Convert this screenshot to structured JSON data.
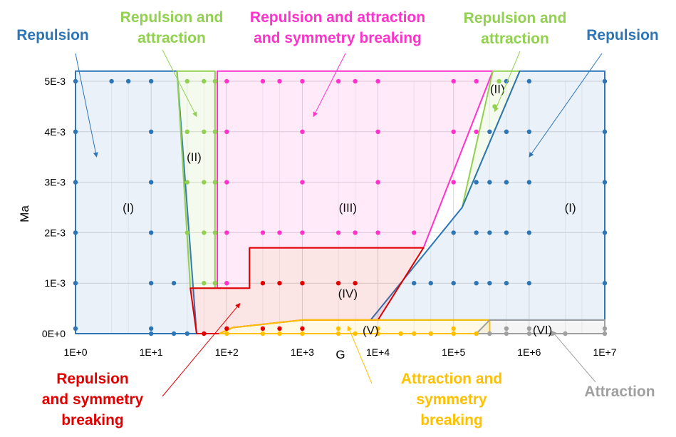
{
  "chart_data": {
    "type": "scatter",
    "title": "",
    "xlabel": "G",
    "ylabel": "Ma",
    "x_scale": "log",
    "xlim": [
      1,
      10000000
    ],
    "ylim": [
      0,
      0.005
    ],
    "grid": true,
    "x_ticks": [
      "1E+0",
      "1E+1",
      "1E+2",
      "1E+3",
      "1E+4",
      "1E+5",
      "1E+6",
      "1E+7"
    ],
    "y_ticks": [
      "0E+0",
      "1E-3",
      "2E-3",
      "3E-3",
      "4E-3",
      "5E-3"
    ],
    "colors": {
      "repulsion": "#2e75b6",
      "repulsion_attraction": "#92d050",
      "repulsion_attraction_symmetry": "#ff33cc",
      "repulsion_symmetry": "#e00000",
      "attraction_symmetry": "#ffc000",
      "attraction": "#a0a0a0"
    },
    "regions": [
      {
        "label": "(I)",
        "color": "#2e75b6",
        "polygon": [
          [
            1,
            0.0052
          ],
          [
            22,
            0.0052
          ],
          [
            40,
            0
          ],
          [
            1,
            0
          ]
        ]
      },
      {
        "label": "(II)",
        "color": "#92d050",
        "polygon": [
          [
            22,
            0.0052
          ],
          [
            70,
            0.0052
          ],
          [
            70,
            0.0009
          ],
          [
            33,
            0.0009
          ]
        ]
      },
      {
        "label": "(III)",
        "color": "#ff33cc",
        "polygon": [
          [
            75,
            0.0052
          ],
          [
            330000,
            0.0052
          ],
          [
            40000,
            0.0017
          ],
          [
            200,
            0.0017
          ],
          [
            200,
            0.0009
          ],
          [
            75,
            0.0009
          ]
        ]
      },
      {
        "label": "(II)",
        "color": "#92d050",
        "polygon": [
          [
            330000,
            0.0052
          ],
          [
            750000,
            0.0052
          ],
          [
            130000,
            0.0025
          ]
        ]
      },
      {
        "label": "(I)",
        "color": "#2e75b6",
        "polygon": [
          [
            750000,
            0.0052
          ],
          [
            10000000,
            0.0052
          ],
          [
            10000000,
            0.00027
          ],
          [
            8000,
            0.00027
          ],
          [
            130000,
            0.0025
          ]
        ]
      },
      {
        "label": "(IV)",
        "color": "#e00000",
        "polygon": [
          [
            33,
            0.0009
          ],
          [
            200,
            0.0009
          ],
          [
            200,
            0.0017
          ],
          [
            40000,
            0.0017
          ],
          [
            10000,
            0.00027
          ],
          [
            1000,
            0.00027
          ],
          [
            120,
            0.00012
          ],
          [
            80,
            0
          ],
          [
            40,
            0
          ]
        ]
      },
      {
        "label": "(V)",
        "color": "#ffc000",
        "polygon": [
          [
            80,
            0
          ],
          [
            300000,
            0
          ],
          [
            300000,
            0.00027
          ],
          [
            1000,
            0.00027
          ],
          [
            120,
            0.00012
          ]
        ]
      },
      {
        "label": "(VI)",
        "color": "#a0a0a0",
        "polygon": [
          [
            200000,
            0
          ],
          [
            10000000,
            0
          ],
          [
            10000000,
            0.00027
          ],
          [
            300000,
            0.00027
          ]
        ]
      }
    ],
    "series": [
      {
        "name": "Repulsion",
        "color": "#2e75b6",
        "points": [
          [
            1,
            0.005
          ],
          [
            3,
            0.005
          ],
          [
            5,
            0.005
          ],
          [
            10,
            0.005
          ],
          [
            1,
            0.004
          ],
          [
            10,
            0.004
          ],
          [
            1,
            0.003
          ],
          [
            10,
            0.003
          ],
          [
            1,
            0.002
          ],
          [
            10,
            0.002
          ],
          [
            1,
            0.001
          ],
          [
            10,
            0.001
          ],
          [
            20,
            0.001
          ],
          [
            1,
            0.0001
          ],
          [
            10,
            0.0001
          ],
          [
            10,
            0
          ],
          [
            20,
            0
          ],
          [
            30,
            0
          ],
          [
            500000,
            0.005
          ],
          [
            1000000,
            0.005
          ],
          [
            10000000,
            0.005
          ],
          [
            300000,
            0.004
          ],
          [
            500000,
            0.004
          ],
          [
            1000000,
            0.004
          ],
          [
            10000000,
            0.004
          ],
          [
            200000,
            0.003
          ],
          [
            300000,
            0.003
          ],
          [
            500000,
            0.003
          ],
          [
            1000000,
            0.003
          ],
          [
            10000000,
            0.003
          ],
          [
            100000,
            0.002
          ],
          [
            200000,
            0.002
          ],
          [
            300000,
            0.002
          ],
          [
            500000,
            0.002
          ],
          [
            1000000,
            0.002
          ],
          [
            10000000,
            0.002
          ],
          [
            30000,
            0.001
          ],
          [
            50000,
            0.001
          ],
          [
            100000,
            0.001
          ],
          [
            200000,
            0.001
          ],
          [
            300000,
            0.001
          ],
          [
            500000,
            0.001
          ],
          [
            1000000,
            0.001
          ],
          [
            10000000,
            0.001
          ]
        ]
      },
      {
        "name": "Repulsion and attraction",
        "color": "#92d050",
        "points": [
          [
            30,
            0.005
          ],
          [
            50,
            0.005
          ],
          [
            70,
            0.005
          ],
          [
            30,
            0.004
          ],
          [
            50,
            0.004
          ],
          [
            70,
            0.004
          ],
          [
            30,
            0.003
          ],
          [
            50,
            0.003
          ],
          [
            70,
            0.003
          ],
          [
            30,
            0.002
          ],
          [
            50,
            0.002
          ],
          [
            70,
            0.002
          ],
          [
            50,
            0.001
          ],
          [
            70,
            0.001
          ],
          [
            400000,
            0.005
          ],
          [
            350000,
            0.0045
          ]
        ]
      },
      {
        "name": "Repulsion and attraction and symmetry breaking",
        "color": "#ff33cc",
        "points": [
          [
            100,
            0.005
          ],
          [
            300,
            0.005
          ],
          [
            500,
            0.005
          ],
          [
            1000,
            0.005
          ],
          [
            3000,
            0.005
          ],
          [
            5000,
            0.005
          ],
          [
            10000,
            0.005
          ],
          [
            100000,
            0.005
          ],
          [
            200000,
            0.005
          ],
          [
            100,
            0.004
          ],
          [
            1000,
            0.004
          ],
          [
            10000,
            0.004
          ],
          [
            100000,
            0.004
          ],
          [
            200000,
            0.004
          ],
          [
            100,
            0.003
          ],
          [
            1000,
            0.003
          ],
          [
            10000,
            0.003
          ],
          [
            100000,
            0.003
          ],
          [
            100,
            0.002
          ],
          [
            300,
            0.002
          ],
          [
            500,
            0.002
          ],
          [
            1000,
            0.002
          ],
          [
            3000,
            0.002
          ],
          [
            5000,
            0.002
          ],
          [
            10000,
            0.002
          ],
          [
            30000,
            0.002
          ],
          [
            100,
            0.001
          ]
        ]
      },
      {
        "name": "Repulsion and symmetry breaking",
        "color": "#e00000",
        "points": [
          [
            300,
            0.001
          ],
          [
            500,
            0.001
          ],
          [
            1000,
            0.001
          ],
          [
            3000,
            0.001
          ],
          [
            5000,
            0.001
          ],
          [
            100,
            0.0001
          ],
          [
            300,
            0.0001
          ],
          [
            500,
            0.0001
          ],
          [
            1000,
            0.0001
          ],
          [
            50,
            0
          ]
        ]
      },
      {
        "name": "Attraction and symmetry breaking",
        "color": "#ffc000",
        "points": [
          [
            100,
            0
          ],
          [
            300,
            0
          ],
          [
            500,
            0
          ],
          [
            1000,
            0
          ],
          [
            3000,
            0
          ],
          [
            5000,
            0
          ],
          [
            10000,
            0
          ],
          [
            20000,
            0
          ],
          [
            30000,
            0
          ],
          [
            50000,
            0
          ],
          [
            100000,
            0
          ],
          [
            200000,
            0
          ],
          [
            3000,
            0.0001
          ],
          [
            10000,
            0.0001
          ],
          [
            100000,
            0.0001
          ]
        ]
      },
      {
        "name": "Attraction",
        "color": "#a0a0a0",
        "points": [
          [
            300000,
            0
          ],
          [
            500000,
            0
          ],
          [
            1000000,
            0
          ],
          [
            2000000,
            0
          ],
          [
            3000000,
            0
          ],
          [
            10000000,
            0
          ],
          [
            500000,
            0.0001
          ],
          [
            1000000,
            0.0001
          ],
          [
            10000000,
            0.0001
          ]
        ]
      }
    ],
    "region_labels": [
      {
        "text": "(I)",
        "x": 5,
        "y": 0.0025
      },
      {
        "text": "(II)",
        "x": 37,
        "y": 0.0035
      },
      {
        "text": "(III)",
        "x": 4000,
        "y": 0.0025
      },
      {
        "text": "(II)",
        "x": 380000,
        "y": 0.00485
      },
      {
        "text": "(I)",
        "x": 3500000,
        "y": 0.0025
      },
      {
        "text": "(IV)",
        "x": 4000,
        "y": 0.0008
      },
      {
        "text": "(V)",
        "x": 8000,
        "y": 7e-05
      },
      {
        "text": "(VI)",
        "x": 1500000,
        "y": 8e-05
      }
    ],
    "annotations": [
      {
        "key": "rep_left",
        "lines": [
          "Repulsion"
        ],
        "color": "#2e75b6",
        "target": [
          1.9,
          0.0035
        ]
      },
      {
        "key": "ra_left",
        "lines": [
          "Repulsion and",
          "attraction"
        ],
        "color": "#92d050",
        "target": [
          40,
          0.0043
        ]
      },
      {
        "key": "ras",
        "lines": [
          "Repulsion and attraction",
          "and symmetry  breaking"
        ],
        "color": "#ff33cc",
        "target": [
          1400,
          0.0043
        ]
      },
      {
        "key": "ra_right",
        "lines": [
          "Repulsion and",
          "attraction"
        ],
        "color": "#92d050",
        "target": [
          350000,
          0.0044
        ]
      },
      {
        "key": "rep_right",
        "lines": [
          "Repulsion"
        ],
        "color": "#2e75b6",
        "target": [
          1000000,
          0.0035
        ]
      },
      {
        "key": "rsb",
        "lines": [
          "Repulsion",
          "and symmetry",
          "breaking"
        ],
        "color": "#e00000",
        "target": [
          150,
          0.0006
        ]
      },
      {
        "key": "asb",
        "lines": [
          "Attraction and",
          "symmetry",
          "breaking"
        ],
        "color": "#ffc000",
        "target": [
          4000,
          0.00015
        ]
      },
      {
        "key": "attr",
        "lines": [
          "Attraction"
        ],
        "color": "#a0a0a0",
        "target": [
          2000000,
          5e-05
        ]
      }
    ]
  }
}
